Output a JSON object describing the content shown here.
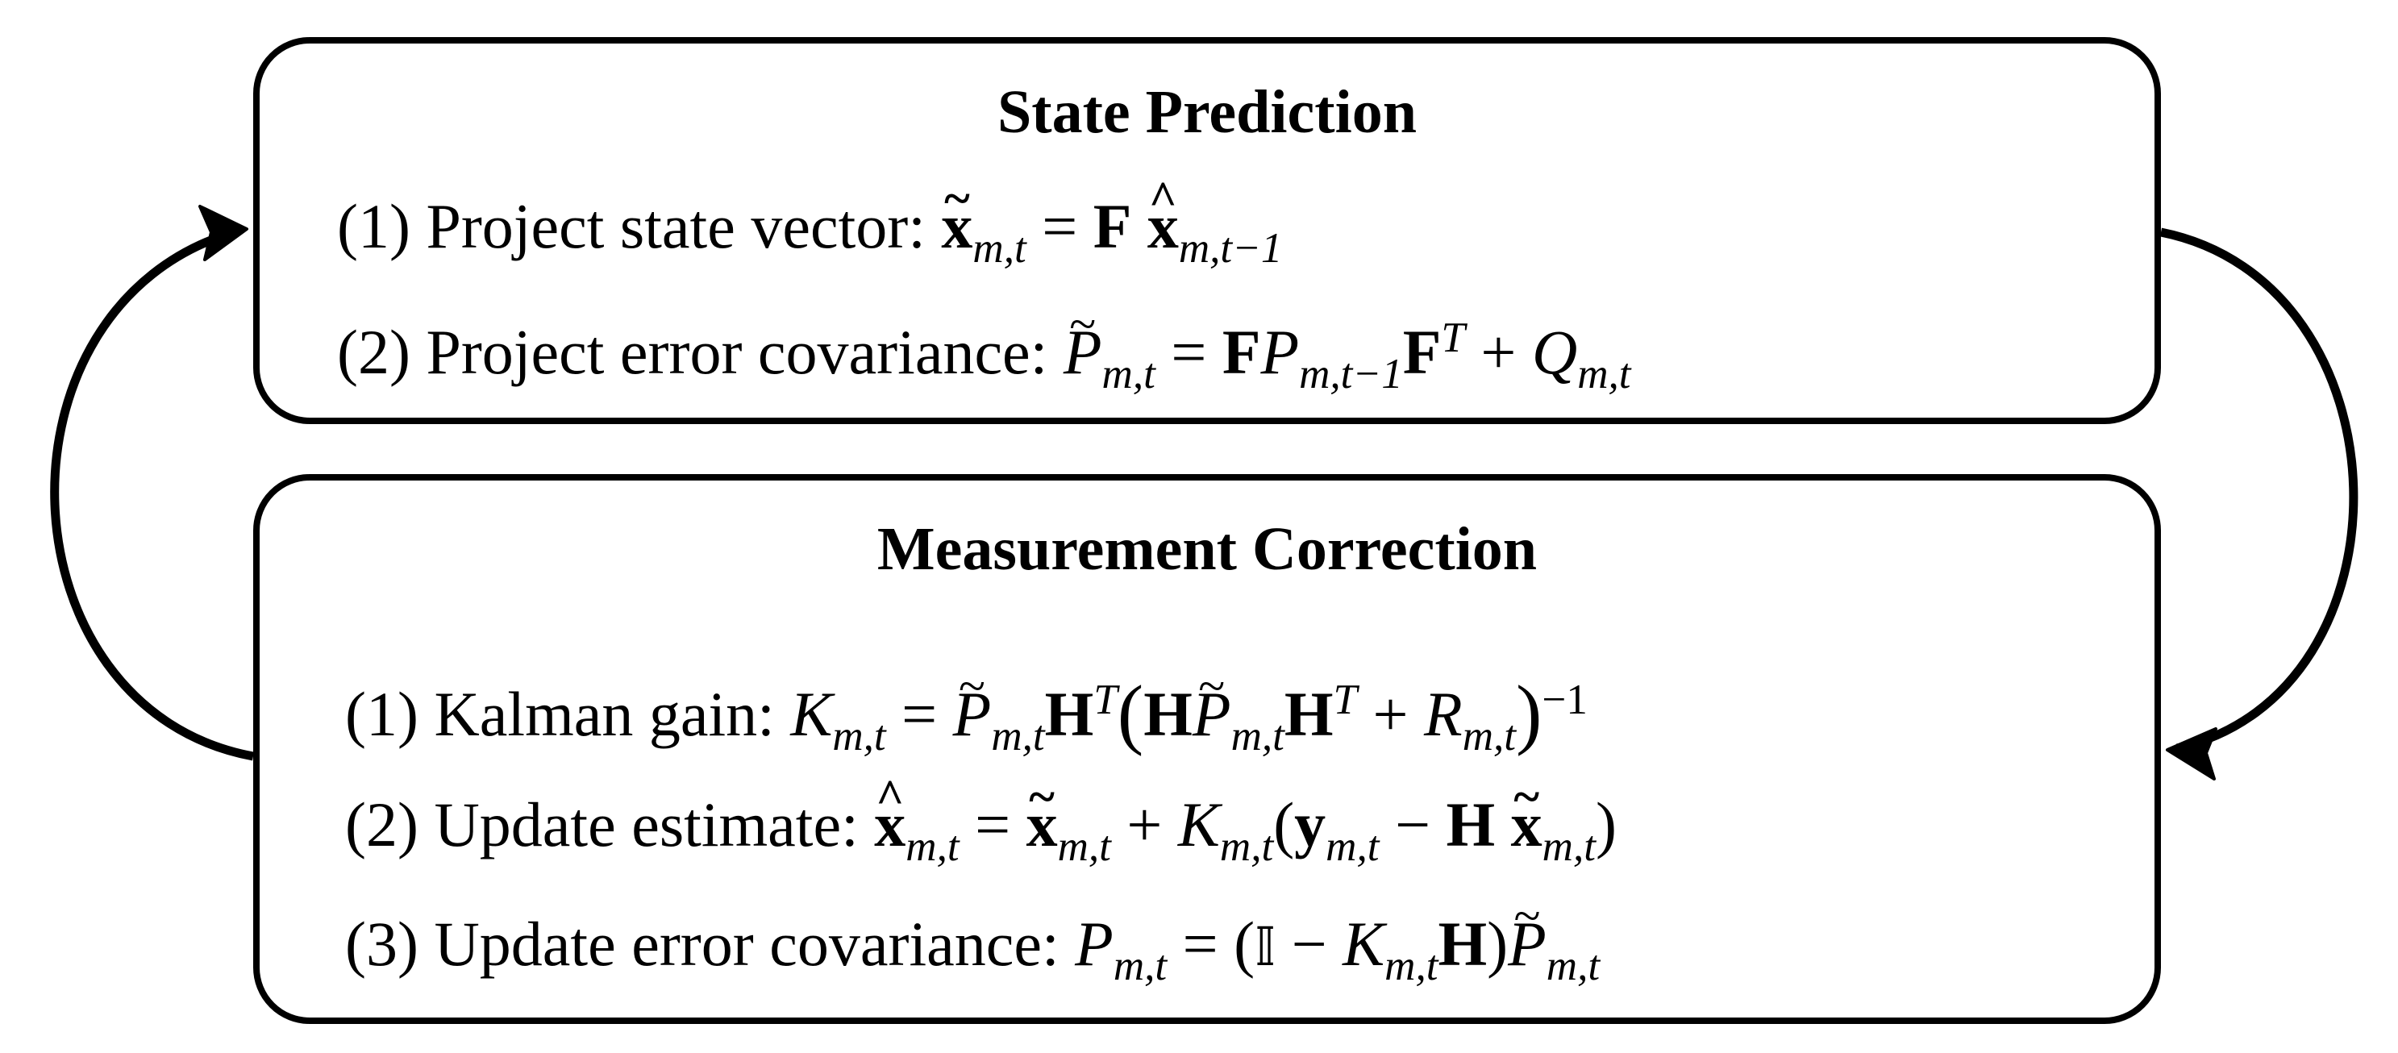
{
  "state_prediction": {
    "title": "State Prediction",
    "steps": [
      {
        "num": "(1)",
        "label": "Project state vector:"
      },
      {
        "num": "(2)",
        "label": "Project error covariance:"
      }
    ]
  },
  "measurement_correction": {
    "title": "Measurement Correction",
    "steps": [
      {
        "num": "(1)",
        "label": "Kalman gain:"
      },
      {
        "num": "(2)",
        "label": "Update estimate:"
      },
      {
        "num": "(3)",
        "label": "Update error covariance:"
      }
    ]
  },
  "symbols": {
    "x": "x",
    "F": "F",
    "H": "H",
    "P": "P",
    "Q": "Q",
    "R": "R",
    "K": "K",
    "y": "y",
    "I": "𝕀",
    "T": "T",
    "sub_mt": "m,t",
    "sub_mt1": "m,t−1",
    "inv": "−1",
    "tilde": "~",
    "hat": "^",
    "eq": "=",
    "plus": "+",
    "minus": "−"
  },
  "colors": {
    "stroke": "#000000",
    "background": "#ffffff"
  }
}
